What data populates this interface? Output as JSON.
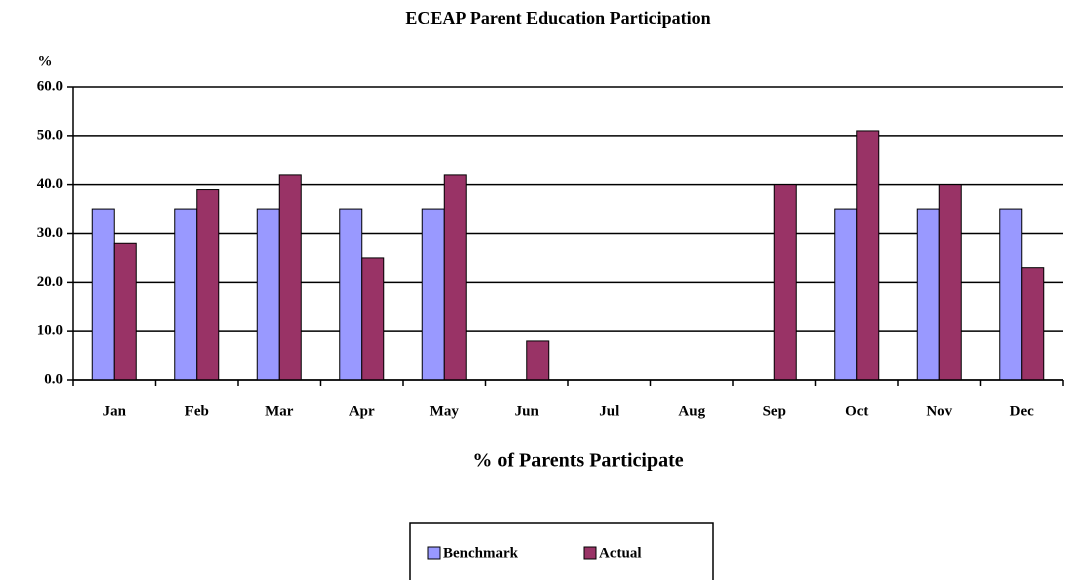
{
  "chart_data": {
    "type": "bar",
    "title": "ECEAP Parent Education Participation",
    "y_label": "%",
    "x_label": "% of Parents Participate",
    "categories": [
      "Jan",
      "Feb",
      "Mar",
      "Apr",
      "May",
      "Jun",
      "Jul",
      "Aug",
      "Sep",
      "Oct",
      "Nov",
      "Dec"
    ],
    "series": [
      {
        "name": "Benchmark",
        "color": "#9999ff",
        "values": [
          35,
          35,
          35,
          35,
          35,
          null,
          null,
          null,
          null,
          35,
          35,
          35
        ]
      },
      {
        "name": "Actual",
        "color": "#993366",
        "values": [
          28,
          39,
          42,
          25,
          42,
          8,
          null,
          null,
          40,
          51,
          40,
          23
        ]
      }
    ],
    "ylim": [
      0,
      60
    ],
    "yticks": [
      {
        "value": 0,
        "label": "0.0"
      },
      {
        "value": 10,
        "label": "10.0"
      },
      {
        "value": 20,
        "label": "20.0"
      },
      {
        "value": 30,
        "label": "30.0"
      },
      {
        "value": 40,
        "label": "40.0"
      },
      {
        "value": 50,
        "label": "50.0"
      },
      {
        "value": 60,
        "label": "60.0"
      }
    ],
    "grid": true,
    "legend": "bottom"
  }
}
